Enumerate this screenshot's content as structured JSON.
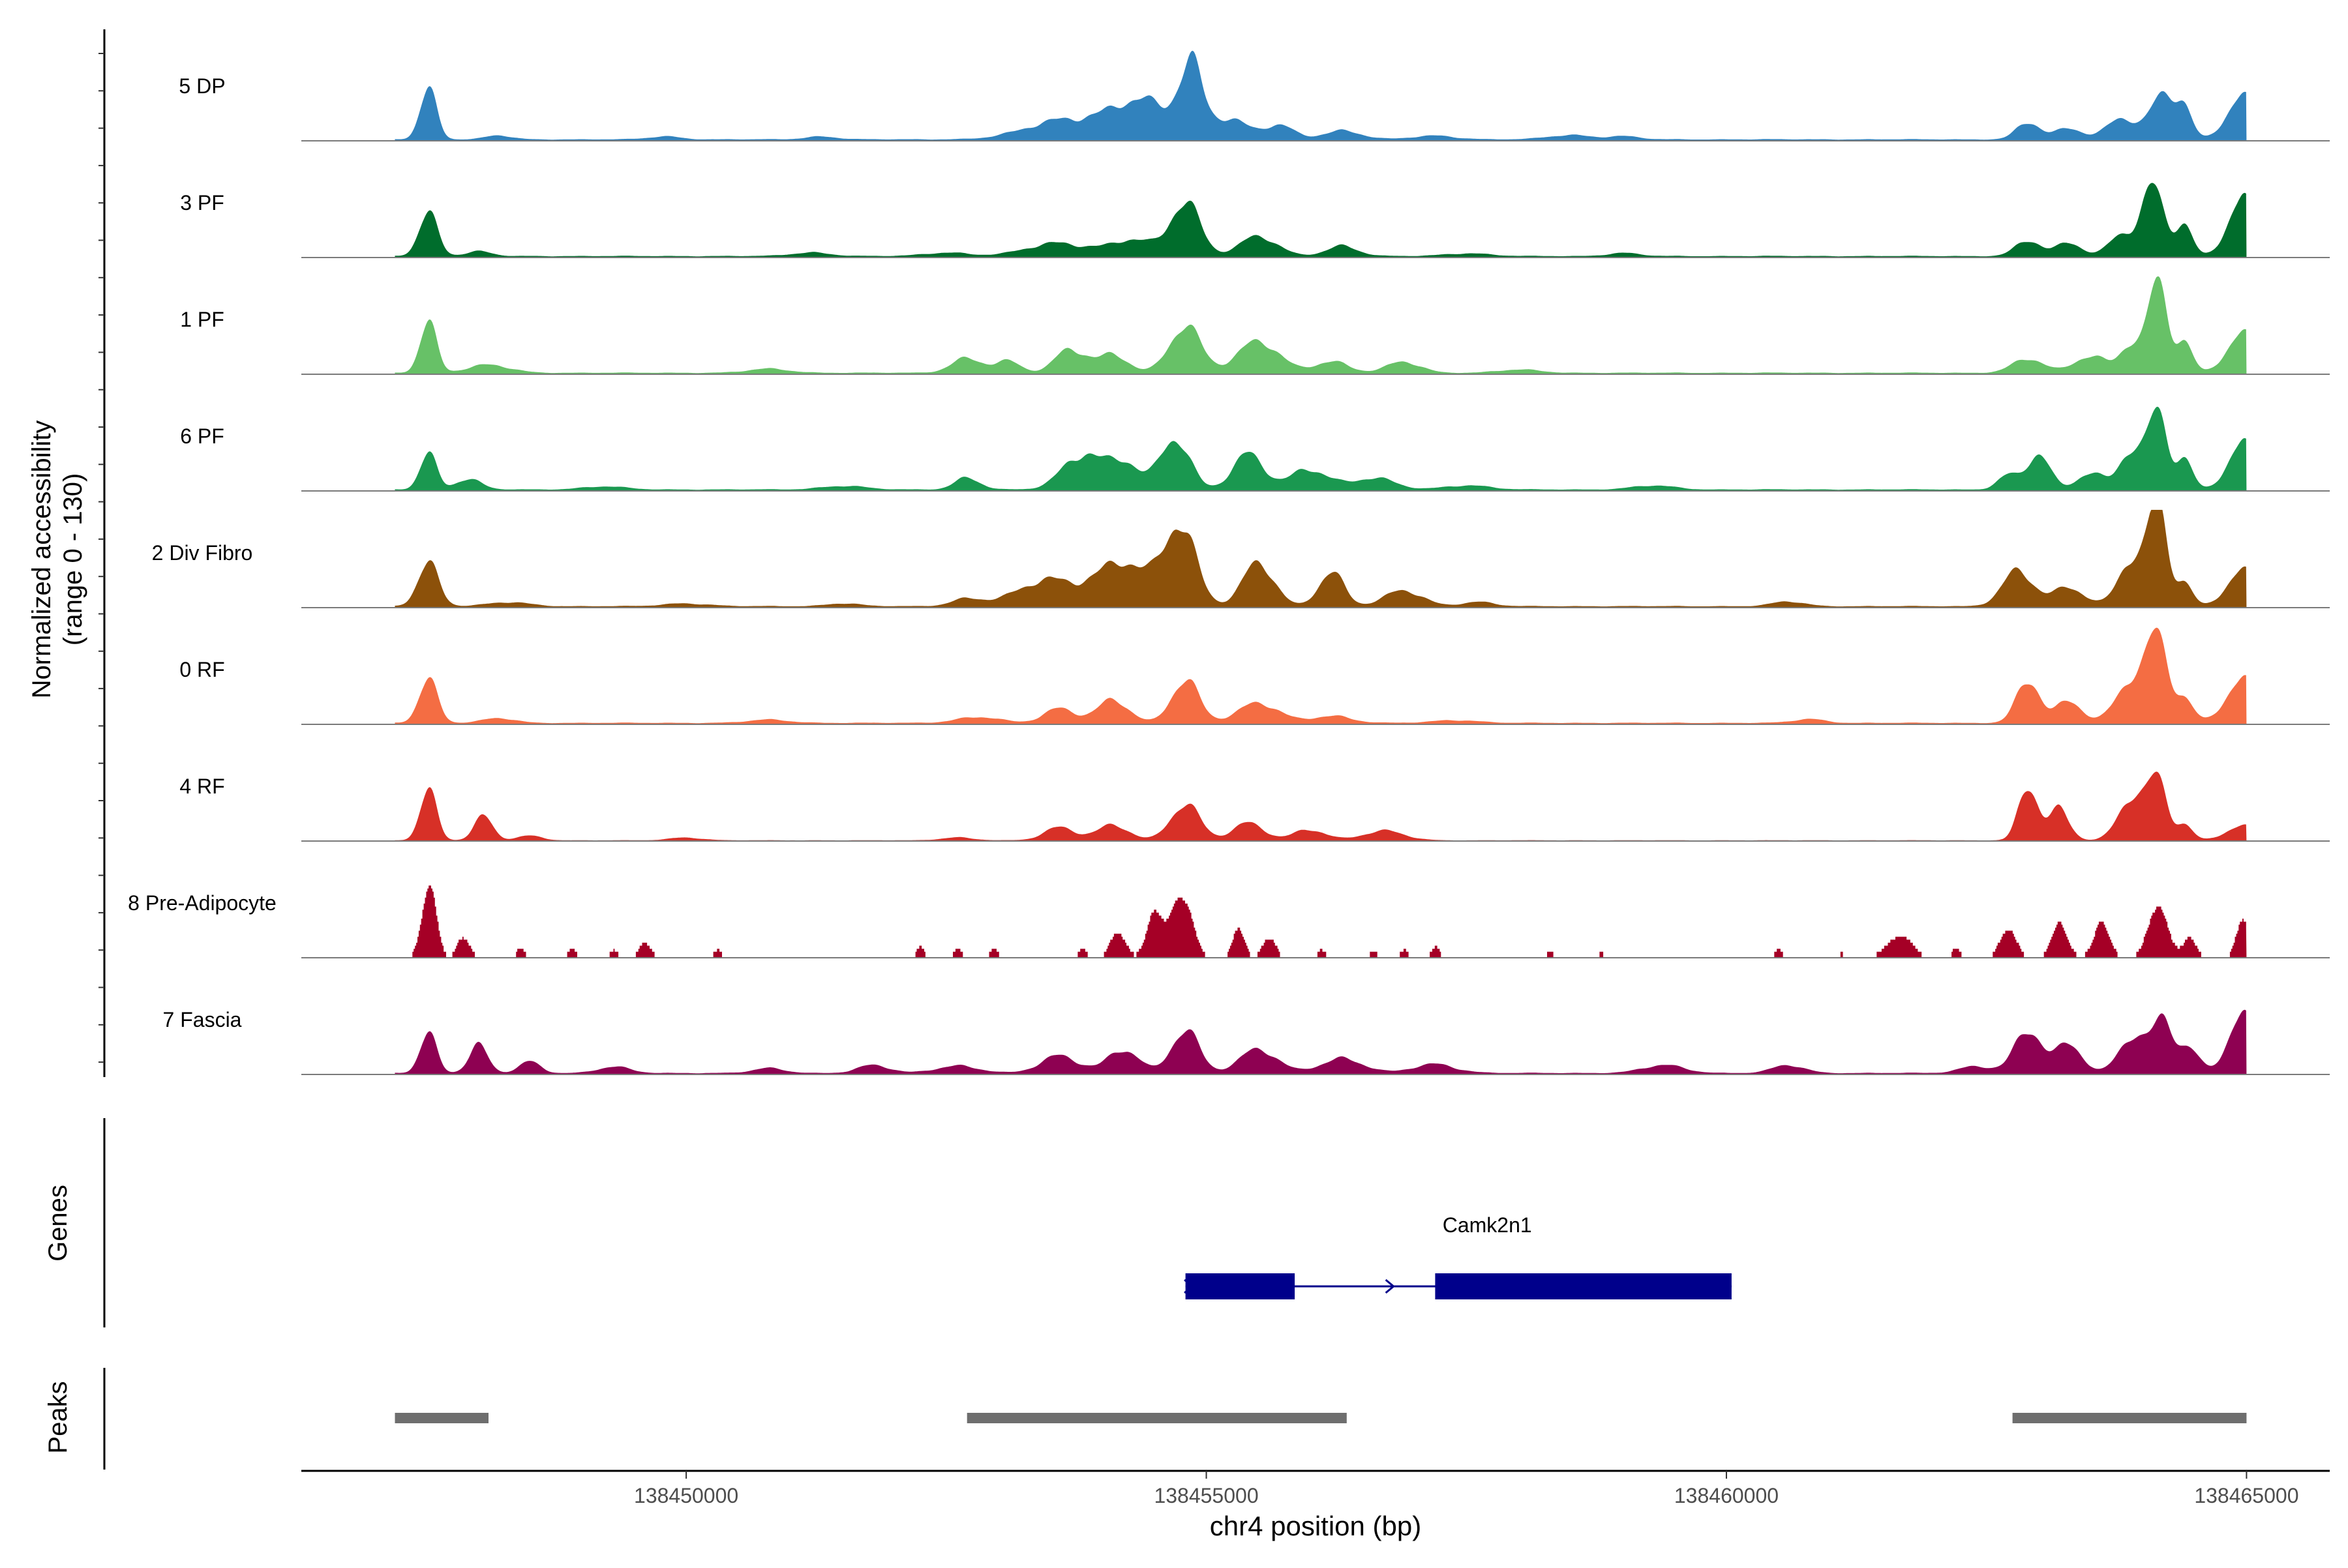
{
  "chart_data": {
    "type": "area",
    "title": "",
    "ylabel_line1": "Normalized accessibility",
    "ylabel_line2": "(range 0 - 130)",
    "xlabel": "chr4 position (bp)",
    "y_range": [
      0,
      130
    ],
    "x_range": [
      138446300,
      138465800
    ],
    "x_ticks": [
      138450000,
      138455000,
      138460000,
      138465000
    ],
    "x_tick_labels": [
      "138450000",
      "138455000",
      "138460000",
      "138465000"
    ],
    "signal_start": 138447200,
    "signal_end": 138465000,
    "tracks": [
      {
        "name": "5 DP",
        "color": "#3182BD",
        "sparse": false,
        "base": 2,
        "peaks": [
          [
            138447520,
            70,
            80
          ],
          [
            138448200,
            5,
            120
          ],
          [
            138449800,
            4,
            150
          ],
          [
            138451300,
            4,
            150
          ],
          [
            138453700,
            28,
            380
          ],
          [
            138454400,
            45,
            280
          ],
          [
            138454850,
            95,
            110
          ],
          [
            138455200,
            28,
            180
          ],
          [
            138455700,
            18,
            140
          ],
          [
            138456300,
            12,
            180
          ],
          [
            138457200,
            5,
            200
          ],
          [
            138458500,
            6,
            200
          ],
          [
            138459000,
            4,
            150
          ],
          [
            138462900,
            22,
            110
          ],
          [
            138463300,
            15,
            130
          ],
          [
            138463800,
            30,
            140
          ],
          [
            138464200,
            55,
            120
          ],
          [
            138464400,
            35,
            80
          ],
          [
            138464950,
            60,
            140
          ]
        ]
      },
      {
        "name": "3 PF",
        "color": "#006D2C",
        "sparse": false,
        "base": 2,
        "peaks": [
          [
            138447520,
            60,
            90
          ],
          [
            138448000,
            6,
            120
          ],
          [
            138451200,
            5,
            180
          ],
          [
            138452500,
            5,
            200
          ],
          [
            138453600,
            18,
            300
          ],
          [
            138454300,
            20,
            200
          ],
          [
            138454800,
            75,
            140
          ],
          [
            138455500,
            25,
            180
          ],
          [
            138456300,
            14,
            150
          ],
          [
            138457500,
            4,
            200
          ],
          [
            138459000,
            4,
            150
          ],
          [
            138462900,
            20,
            120
          ],
          [
            138463300,
            18,
            120
          ],
          [
            138463800,
            30,
            120
          ],
          [
            138464100,
            85,
            110
          ],
          [
            138464400,
            40,
            80
          ],
          [
            138464950,
            80,
            130
          ]
        ]
      },
      {
        "name": "1 PF",
        "color": "#67C167",
        "sparse": false,
        "base": 2,
        "peaks": [
          [
            138447520,
            70,
            80
          ],
          [
            138448100,
            10,
            200
          ],
          [
            138450800,
            5,
            200
          ],
          [
            138452700,
            20,
            150
          ],
          [
            138453100,
            14,
            120
          ],
          [
            138453700,
            35,
            140
          ],
          [
            138454100,
            24,
            140
          ],
          [
            138454800,
            65,
            150
          ],
          [
            138455500,
            40,
            200
          ],
          [
            138456200,
            16,
            160
          ],
          [
            138456900,
            14,
            160
          ],
          [
            138458000,
            4,
            200
          ],
          [
            138462900,
            18,
            150
          ],
          [
            138463500,
            24,
            150
          ],
          [
            138463900,
            40,
            110
          ],
          [
            138464150,
            110,
            90
          ],
          [
            138464400,
            40,
            80
          ],
          [
            138464950,
            55,
            140
          ]
        ]
      },
      {
        "name": "6 PF",
        "color": "#1A9850",
        "sparse": false,
        "base": 2,
        "peaks": [
          [
            138447520,
            50,
            80
          ],
          [
            138447900,
            14,
            120
          ],
          [
            138449200,
            4,
            200
          ],
          [
            138451500,
            5,
            200
          ],
          [
            138452700,
            16,
            120
          ],
          [
            138453800,
            50,
            180
          ],
          [
            138454200,
            35,
            150
          ],
          [
            138454700,
            70,
            140
          ],
          [
            138455400,
            45,
            150
          ],
          [
            138456000,
            28,
            180
          ],
          [
            138456600,
            15,
            200
          ],
          [
            138457500,
            6,
            200
          ],
          [
            138459300,
            5,
            200
          ],
          [
            138462700,
            18,
            100
          ],
          [
            138463000,
            45,
            110
          ],
          [
            138463500,
            24,
            120
          ],
          [
            138463900,
            55,
            120
          ],
          [
            138464150,
            90,
            90
          ],
          [
            138464400,
            40,
            80
          ],
          [
            138464950,
            65,
            130
          ]
        ]
      },
      {
        "name": "2 Div Fibro",
        "color": "#8C510A",
        "sparse": false,
        "base": 2,
        "peaks": [
          [
            138447520,
            60,
            100
          ],
          [
            138448300,
            5,
            200
          ],
          [
            138450000,
            4,
            200
          ],
          [
            138451500,
            4,
            150
          ],
          [
            138452700,
            10,
            150
          ],
          [
            138453500,
            35,
            300
          ],
          [
            138454200,
            55,
            250
          ],
          [
            138454750,
            110,
            150
          ],
          [
            138455500,
            55,
            150
          ],
          [
            138456200,
            48,
            120
          ],
          [
            138456900,
            20,
            180
          ],
          [
            138457600,
            6,
            150
          ],
          [
            138460600,
            6,
            150
          ],
          [
            138462800,
            45,
            150
          ],
          [
            138463300,
            25,
            150
          ],
          [
            138463900,
            65,
            130
          ],
          [
            138464150,
            120,
            90
          ],
          [
            138464400,
            30,
            80
          ],
          [
            138464950,
            50,
            140
          ]
        ]
      },
      {
        "name": "0 RF",
        "color": "#F46D43",
        "sparse": false,
        "base": 2,
        "peaks": [
          [
            138447520,
            60,
            90
          ],
          [
            138448200,
            6,
            150
          ],
          [
            138450800,
            4,
            200
          ],
          [
            138452800,
            8,
            200
          ],
          [
            138453600,
            20,
            150
          ],
          [
            138454100,
            30,
            150
          ],
          [
            138454800,
            60,
            130
          ],
          [
            138455500,
            25,
            200
          ],
          [
            138456200,
            10,
            180
          ],
          [
            138457400,
            4,
            200
          ],
          [
            138460800,
            5,
            150
          ],
          [
            138462900,
            55,
            110
          ],
          [
            138463300,
            30,
            120
          ],
          [
            138463900,
            60,
            150
          ],
          [
            138464150,
            95,
            100
          ],
          [
            138464400,
            30,
            90
          ],
          [
            138464950,
            60,
            150
          ]
        ]
      },
      {
        "name": "4 RF",
        "color": "#D73027",
        "sparse": false,
        "base": 1,
        "peaks": [
          [
            138447520,
            70,
            80
          ],
          [
            138448050,
            30,
            90
          ],
          [
            138448500,
            6,
            120
          ],
          [
            138450000,
            4,
            150
          ],
          [
            138452600,
            4,
            150
          ],
          [
            138453600,
            18,
            150
          ],
          [
            138454100,
            20,
            150
          ],
          [
            138454800,
            50,
            140
          ],
          [
            138455400,
            22,
            150
          ],
          [
            138456000,
            15,
            150
          ],
          [
            138456700,
            12,
            200
          ],
          [
            138462900,
            70,
            90
          ],
          [
            138463200,
            40,
            100
          ],
          [
            138463900,
            60,
            130
          ],
          [
            138464150,
            70,
            90
          ],
          [
            138464400,
            20,
            80
          ],
          [
            138464950,
            20,
            150
          ]
        ]
      },
      {
        "name": "8 Pre-Adipocyte",
        "color": "#A50026",
        "sparse": true,
        "base": 0,
        "peaks": [
          [
            138447520,
            95,
            70
          ],
          [
            138447850,
            30,
            60
          ],
          [
            138448400,
            12,
            40
          ],
          [
            138448900,
            12,
            40
          ],
          [
            138449300,
            10,
            40
          ],
          [
            138449600,
            20,
            60
          ],
          [
            138450300,
            10,
            40
          ],
          [
            138452250,
            14,
            40
          ],
          [
            138452600,
            12,
            40
          ],
          [
            138452950,
            12,
            40
          ],
          [
            138453800,
            14,
            40
          ],
          [
            138454150,
            35,
            70
          ],
          [
            138454500,
            50,
            80
          ],
          [
            138454750,
            90,
            100
          ],
          [
            138455300,
            35,
            60
          ],
          [
            138455600,
            28,
            60
          ],
          [
            138456100,
            12,
            40
          ],
          [
            138456600,
            10,
            40
          ],
          [
            138456900,
            10,
            40
          ],
          [
            138457200,
            14,
            40
          ],
          [
            138458300,
            8,
            40
          ],
          [
            138458800,
            8,
            40
          ],
          [
            138460100,
            6,
            40
          ],
          [
            138460500,
            10,
            40
          ],
          [
            138461100,
            8,
            40
          ],
          [
            138461650,
            28,
            120
          ],
          [
            138462200,
            12,
            40
          ],
          [
            138462700,
            35,
            80
          ],
          [
            138463200,
            40,
            80
          ],
          [
            138463600,
            45,
            80
          ],
          [
            138464150,
            60,
            100
          ],
          [
            138464450,
            25,
            60
          ],
          [
            138464950,
            50,
            60
          ]
        ]
      },
      {
        "name": "7 Fascia",
        "color": "#8E0152",
        "sparse": false,
        "base": 2,
        "peaks": [
          [
            138447520,
            55,
            80
          ],
          [
            138448000,
            35,
            90
          ],
          [
            138448500,
            15,
            100
          ],
          [
            138449300,
            8,
            150
          ],
          [
            138450800,
            6,
            150
          ],
          [
            138451800,
            10,
            150
          ],
          [
            138452600,
            10,
            200
          ],
          [
            138453600,
            24,
            180
          ],
          [
            138454200,
            30,
            150
          ],
          [
            138454800,
            60,
            130
          ],
          [
            138455500,
            30,
            180
          ],
          [
            138456300,
            20,
            200
          ],
          [
            138457200,
            12,
            200
          ],
          [
            138459400,
            10,
            200
          ],
          [
            138460600,
            10,
            150
          ],
          [
            138462400,
            10,
            150
          ],
          [
            138462900,
            55,
            130
          ],
          [
            138463300,
            40,
            120
          ],
          [
            138463900,
            50,
            130
          ],
          [
            138464200,
            65,
            100
          ],
          [
            138464450,
            30,
            100
          ],
          [
            138464950,
            80,
            130
          ]
        ]
      }
    ],
    "genes_label": "Genes",
    "gene": {
      "name": "Camk2n1",
      "strand": "+",
      "start": 138454800,
      "end": 138460050,
      "exons": [
        [
          138454800,
          138455850
        ],
        [
          138457200,
          138460050
        ]
      ],
      "color": "#00008B"
    },
    "peaks_label": "Peaks",
    "peak_regions": [
      [
        138447200,
        138448100
      ],
      [
        138452700,
        138456350
      ],
      [
        138462750,
        138465000
      ]
    ],
    "peak_color": "#6E6E6E"
  }
}
